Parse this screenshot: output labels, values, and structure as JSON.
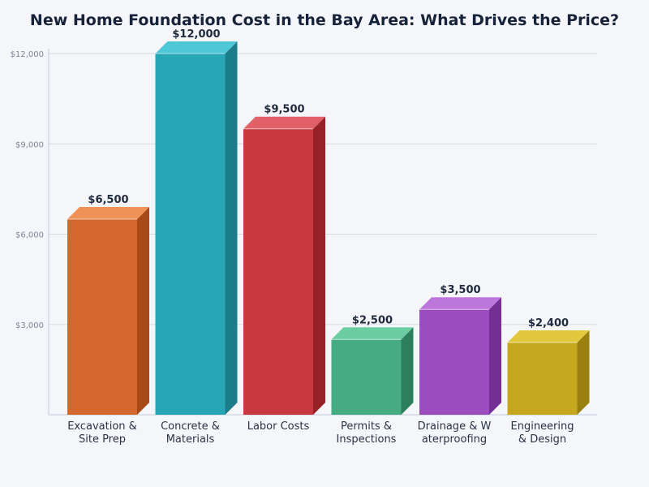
{
  "chart_data": {
    "type": "bar",
    "title": "New Home Foundation Cost in the Bay Area: What Drives the Price?",
    "xlabel": "",
    "ylabel": "",
    "ylim": [
      0,
      12000
    ],
    "yticks": [
      3000,
      6000,
      9000,
      12000
    ],
    "ytick_labels": [
      "$3,000",
      "$6,000",
      "$9,000",
      "$12,000"
    ],
    "grid": true,
    "categories": [
      [
        "Excavation &",
        "Site Prep"
      ],
      [
        "Concrete &",
        "Materials"
      ],
      [
        "Labor Costs"
      ],
      [
        "Permits &",
        "Inspections"
      ],
      [
        "Drainage & W",
        "aterproofing"
      ],
      [
        "Engineering",
        "& Design"
      ]
    ],
    "values": [
      6500,
      12000,
      9500,
      2500,
      3500,
      2400
    ],
    "value_labels": [
      "$6,500",
      "$12,000",
      "$9,500",
      "$2,500",
      "$3,500",
      "$2,400"
    ],
    "colors": [
      {
        "front": "#d4672e",
        "top": "#ee9257",
        "side": "#a84a18"
      },
      {
        "front": "#29a6b5",
        "top": "#4ec8d6",
        "side": "#1b7d89"
      },
      {
        "front": "#c7393f",
        "top": "#e26168",
        "side": "#962227"
      },
      {
        "front": "#45ab82",
        "top": "#6ccda2",
        "side": "#2c7f5c"
      },
      {
        "front": "#9b4dbd",
        "top": "#bd77dc",
        "side": "#732f93"
      },
      {
        "front": "#c6a71e",
        "top": "#e3c73d",
        "side": "#9a8010"
      }
    ]
  }
}
